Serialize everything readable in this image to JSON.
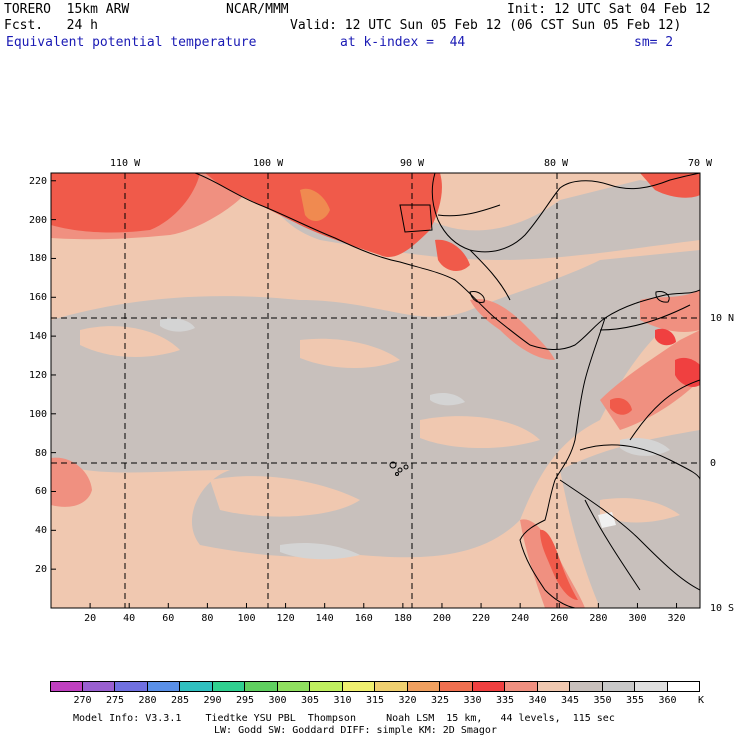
{
  "header": {
    "model": "TORERO  15km ARW",
    "center": "NCAR/MMM",
    "init": "Init: 12 UTC Sat 04 Feb 12",
    "fcst": "Fcst.   24 h",
    "valid": "Valid: 12 UTC Sun 05 Feb 12 (06 CST Sun 05 Feb 12)",
    "field": "Equivalent potential temperature",
    "level": "at k-index =  44",
    "smooth": "sm= 2"
  },
  "map": {
    "lon_labels": [
      "110 W",
      "100 W",
      "90 W",
      "80 W",
      "70 W"
    ],
    "lat_labels": [
      "10 N",
      "0",
      "10 S"
    ],
    "y_ticks": [
      "220",
      "200",
      "180",
      "160",
      "140",
      "120",
      "100",
      "80",
      "60",
      "40",
      "20"
    ],
    "x_ticks": [
      "20",
      "40",
      "60",
      "80",
      "100",
      "120",
      "140",
      "160",
      "180",
      "200",
      "220",
      "240",
      "260",
      "280",
      "300",
      "320"
    ]
  },
  "colorbar": {
    "labels": [
      "270",
      "275",
      "280",
      "285",
      "290",
      "295",
      "300",
      "305",
      "310",
      "315",
      "320",
      "325",
      "330",
      "335",
      "340",
      "345",
      "350",
      "355",
      "360"
    ],
    "unit": "K",
    "colors": [
      "#c040c0",
      "#9a60d0",
      "#7070e0",
      "#5a90e8",
      "#30c0c0",
      "#30d090",
      "#60d060",
      "#90e060",
      "#c0f060",
      "#f0f070",
      "#f0d070",
      "#f0a060",
      "#f07050",
      "#f04040",
      "#f09080",
      "#f0c8b0",
      "#c8c0bc",
      "#c8c8c8",
      "#e0e0e0",
      "#ffffff"
    ]
  },
  "footer": {
    "line1": "Model Info: V3.3.1    Tiedtke YSU PBL  Thompson     Noah LSM  15 km,   44 levels,  115 sec",
    "line2": "LW: Godd SW: Goddard DIFF: simple KM: 2D Smagor"
  }
}
